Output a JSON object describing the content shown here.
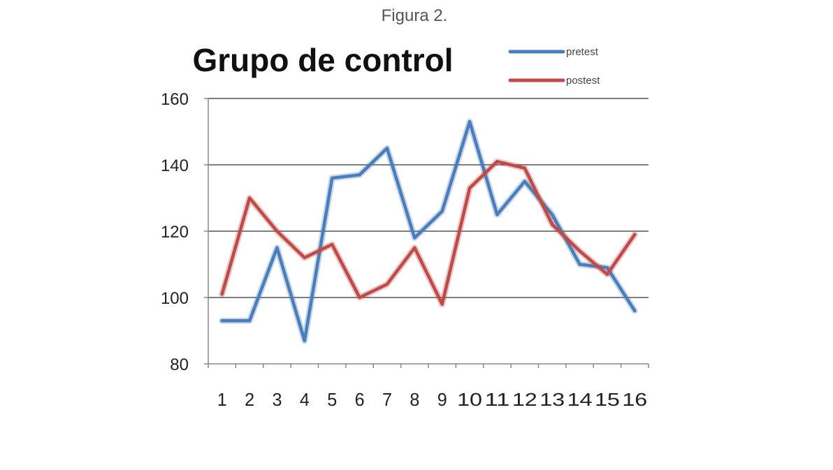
{
  "caption": "Figura 2.",
  "chart_data": {
    "type": "line",
    "title": "Grupo de control",
    "xlabel": "",
    "ylabel": "",
    "ylim": [
      80,
      160
    ],
    "yticks": [
      80,
      100,
      120,
      140,
      160
    ],
    "grid": true,
    "legend_position": "top-right",
    "categories": [
      "1",
      "2",
      "3",
      "4",
      "5",
      "6",
      "7",
      "8",
      "9",
      "10",
      "11",
      "12",
      "13",
      "14",
      "15",
      "16"
    ],
    "series": [
      {
        "name": "pretest",
        "color": "#4a7ebb",
        "values": [
          93,
          93,
          115,
          87,
          136,
          137,
          145,
          118,
          126,
          153,
          125,
          135,
          125,
          110,
          109,
          96
        ]
      },
      {
        "name": "postest",
        "color": "#be4b48",
        "values": [
          101,
          130,
          120,
          112,
          116,
          100,
          104,
          115,
          98,
          133,
          141,
          139,
          122,
          114,
          107,
          119
        ]
      }
    ]
  }
}
